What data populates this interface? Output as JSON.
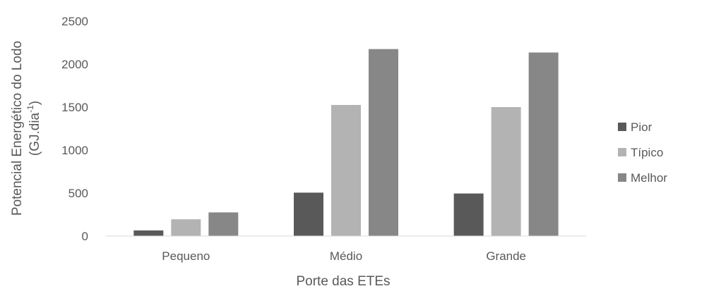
{
  "chart_data": {
    "type": "bar",
    "categories": [
      "Pequeno",
      "Médio",
      "Grande"
    ],
    "series": [
      {
        "name": "Pior",
        "values": [
          65,
          505,
          495
        ],
        "color": "#595959"
      },
      {
        "name": "Típico",
        "values": [
          195,
          1525,
          1500
        ],
        "color": "#b3b3b3"
      },
      {
        "name": "Melhor",
        "values": [
          275,
          2175,
          2135
        ],
        "color": "#878787"
      }
    ],
    "xlabel": "Porte das ETEs",
    "ylabel": {
      "line1": "Potencial Energético do Lodo",
      "line2_prefix": "(GJ.dia",
      "line2_sup": "-1",
      "line2_suffix": ")"
    },
    "ylim": [
      0,
      2500
    ],
    "yticks": [
      0,
      500,
      1000,
      1500,
      2000,
      2500
    ],
    "grid": false,
    "legend_position": "right",
    "axis_color": "#d9d9d9"
  }
}
